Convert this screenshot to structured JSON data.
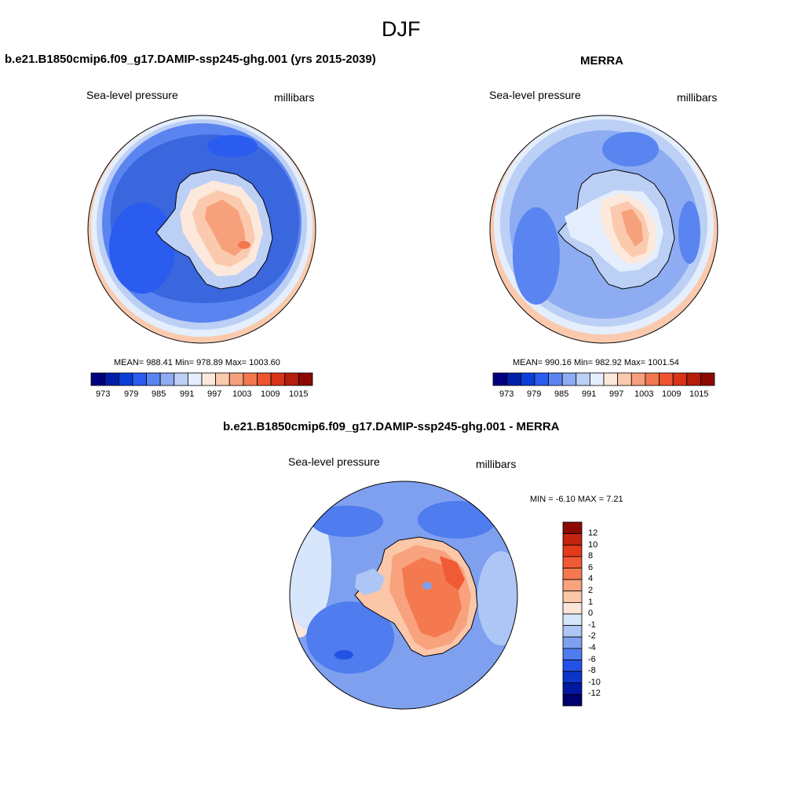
{
  "season": "DJF",
  "panels": [
    {
      "title": "b.e21.B1850cmip6.f09_g17.DAMIP-ssp245-ghg.001 (yrs 2015-2039)",
      "variable": "Sea-level pressure",
      "units": "millibars",
      "stats": "MEAN= 988.41  Min= 978.89  Max= 1003.60",
      "ticks": [
        "973",
        "979",
        "985",
        "991",
        "997",
        "1003",
        "1009",
        "1015"
      ]
    },
    {
      "title": "MERRA",
      "variable": "Sea-level pressure",
      "units": "millibars",
      "stats": "MEAN= 990.16  Min= 982.92  Max= 1001.54",
      "ticks": [
        "973",
        "979",
        "985",
        "991",
        "997",
        "1003",
        "1009",
        "1015"
      ]
    },
    {
      "title": "b.e21.B1850cmip6.f09_g17.DAMIP-ssp245-ghg.001 - MERRA",
      "variable": "Sea-level pressure",
      "units": "millibars",
      "stats": "MIN =  -6.10 MAX =   7.21",
      "ticks": [
        "12",
        "10",
        "8",
        "6",
        "4",
        "2",
        "1",
        "0",
        "-1",
        "-2",
        "-4",
        "-6",
        "-8",
        "-10",
        "-12"
      ]
    }
  ],
  "colors": {
    "abs_scale": [
      "#00007f",
      "#0020a8",
      "#0a3ed8",
      "#2a5cf0",
      "#5a84f0",
      "#8eacf2",
      "#bcd0f6",
      "#e4eefc",
      "#fde9dc",
      "#fbcaae",
      "#f7a07c",
      "#f2784f",
      "#ef5430",
      "#d93218",
      "#b51e0a",
      "#8a0a02"
    ],
    "diff_scale": [
      "#8a0a02",
      "#c42410",
      "#e33a1a",
      "#f05a34",
      "#f5794f",
      "#f8a27e",
      "#fbc7a8",
      "#fde6d9",
      "#d8e6fb",
      "#aec6f5",
      "#7ea0ef",
      "#4f7cee",
      "#2552e6",
      "#0b36c8",
      "#0018a0",
      "#000070"
    ],
    "ocean_dark": "#3a66de",
    "ocean_mid": "#5e88ea",
    "ocean_light": "#a9c2f4",
    "coast": "#000000"
  }
}
